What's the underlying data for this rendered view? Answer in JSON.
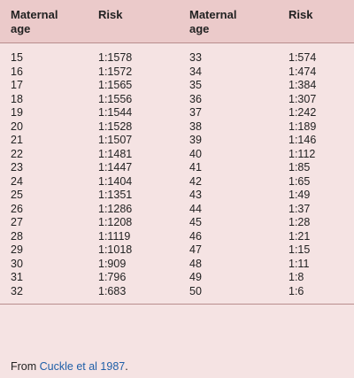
{
  "table": {
    "headers": {
      "col1": [
        "Maternal",
        "age"
      ],
      "col2": "Risk",
      "col3": [
        "Maternal",
        "age"
      ],
      "col4": "Risk"
    },
    "rows": [
      {
        "age_left": "15",
        "risk_left": "1:1578",
        "age_right": "33",
        "risk_right": "1:574"
      },
      {
        "age_left": "16",
        "risk_left": "1:1572",
        "age_right": "34",
        "risk_right": "1:474"
      },
      {
        "age_left": "17",
        "risk_left": "1:1565",
        "age_right": "35",
        "risk_right": "1:384"
      },
      {
        "age_left": "18",
        "risk_left": "1:1556",
        "age_right": "36",
        "risk_right": "1:307"
      },
      {
        "age_left": "19",
        "risk_left": "1:1544",
        "age_right": "37",
        "risk_right": "1:242"
      },
      {
        "age_left": "20",
        "risk_left": "1:1528",
        "age_right": "38",
        "risk_right": "1:189"
      },
      {
        "age_left": "21",
        "risk_left": "1:1507",
        "age_right": "39",
        "risk_right": "1:146"
      },
      {
        "age_left": "22",
        "risk_left": "1:1481",
        "age_right": "40",
        "risk_right": "1:112"
      },
      {
        "age_left": "23",
        "risk_left": "1:1447",
        "age_right": "41",
        "risk_right": "1:85"
      },
      {
        "age_left": "24",
        "risk_left": "1:1404",
        "age_right": "42",
        "risk_right": "1:65"
      },
      {
        "age_left": "25",
        "risk_left": "1:1351",
        "age_right": "43",
        "risk_right": "1:49"
      },
      {
        "age_left": "26",
        "risk_left": "1:1286",
        "age_right": "44",
        "risk_right": "1:37"
      },
      {
        "age_left": "27",
        "risk_left": "1:1208",
        "age_right": "45",
        "risk_right": "1:28"
      },
      {
        "age_left": "28",
        "risk_left": "1:1119",
        "age_right": "46",
        "risk_right": "1:21"
      },
      {
        "age_left": "29",
        "risk_left": "1:1018",
        "age_right": "47",
        "risk_right": "1:15"
      },
      {
        "age_left": "30",
        "risk_left": "1:909",
        "age_right": "48",
        "risk_right": "1:11"
      },
      {
        "age_left": "31",
        "risk_left": "1:796",
        "age_right": "49",
        "risk_right": "1:8"
      },
      {
        "age_left": "32",
        "risk_left": "1:683",
        "age_right": "50",
        "risk_right": "1:6"
      }
    ]
  },
  "footnote": {
    "prefix": "From ",
    "link_text": "Cuckle et al 1987",
    "suffix": "."
  },
  "colors": {
    "background": "#f5e3e3",
    "header_background": "#ebcaca",
    "rule": "#b88d8d",
    "link": "#1f5fa8"
  }
}
